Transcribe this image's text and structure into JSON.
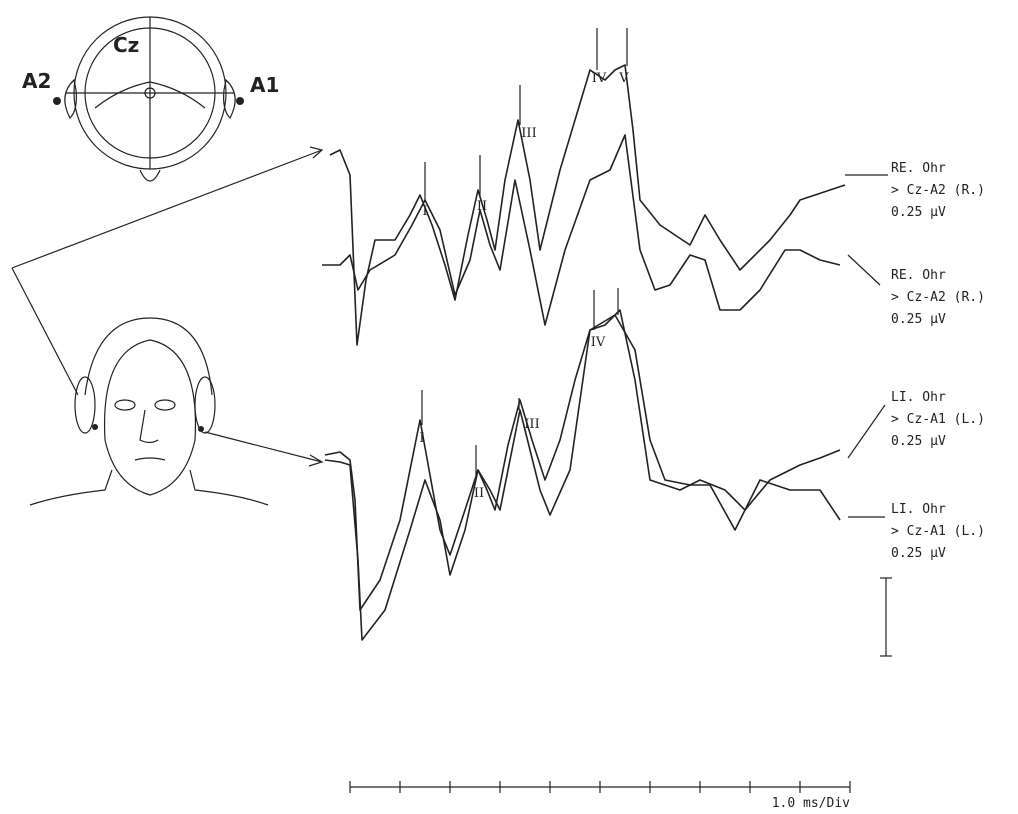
{
  "electrodes": [
    "A2",
    "Cz",
    "A1"
  ],
  "peak_labels": {
    "right_ear": [
      "I",
      "II",
      "III",
      "IV",
      "V"
    ],
    "left_ear": [
      "I",
      "II",
      "III",
      "IV"
    ]
  },
  "traces": [
    {
      "lines": [
        "RE. Ohr",
        "> Cz-A2 (R.)",
        "0.25 µV"
      ]
    },
    {
      "lines": [
        "RE. Ohr",
        "> Cz-A2 (R.)",
        "0.25 µV"
      ]
    },
    {
      "lines": [
        "LI. Ohr",
        "> Cz-A1 (L.)",
        "0.25 µV"
      ]
    },
    {
      "lines": [
        "LI. Ohr",
        "> Cz-A1 (L.)",
        "0.25 µV"
      ]
    }
  ],
  "time_scale": "1.0 ms/Div"
}
